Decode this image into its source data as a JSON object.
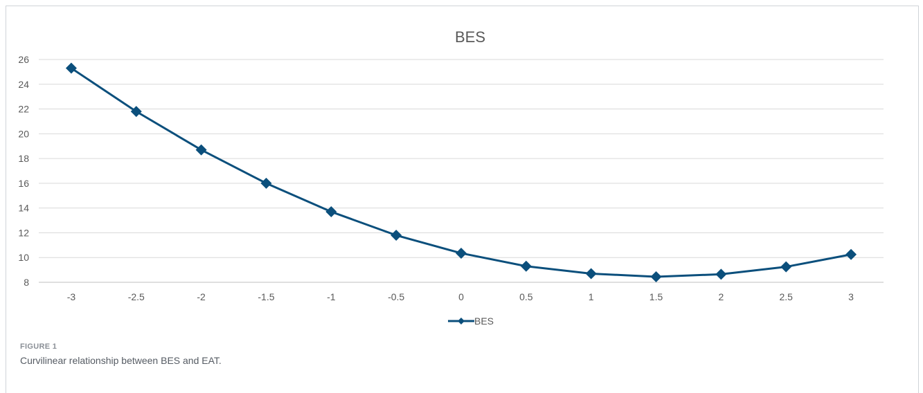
{
  "chart_data": {
    "type": "line",
    "title": "BES",
    "xlabel": "",
    "ylabel": "",
    "x": [
      -3,
      -2.5,
      -2,
      -1.5,
      -1,
      -0.5,
      0,
      0.5,
      1,
      1.5,
      2,
      2.5,
      3
    ],
    "x_tick_labels": [
      "-3",
      "-2.5",
      "-2",
      "-1.5",
      "-1",
      "-0.5",
      "0",
      "0.5",
      "1",
      "1.5",
      "2",
      "2.5",
      "3"
    ],
    "y_ticks": [
      8,
      10,
      12,
      14,
      16,
      18,
      20,
      22,
      24,
      26
    ],
    "y_tick_labels": [
      "8",
      "10",
      "12",
      "14",
      "16",
      "18",
      "20",
      "22",
      "24",
      "26"
    ],
    "ylim": [
      8,
      26
    ],
    "grid": true,
    "legend_position": "bottom",
    "series": [
      {
        "name": "BES",
        "marker": "diamond",
        "color": "#0b4f7c",
        "values": [
          25.3,
          21.8,
          18.7,
          16.0,
          13.7,
          11.8,
          10.35,
          9.3,
          8.7,
          8.45,
          8.65,
          9.25,
          10.25
        ]
      }
    ]
  },
  "figure": {
    "label": "FIGURE 1",
    "caption": "Curvilinear relationship between BES and EAT."
  }
}
